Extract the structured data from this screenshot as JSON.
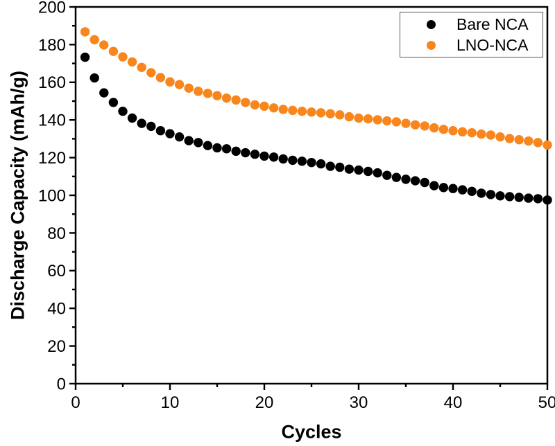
{
  "figure": {
    "background": "#ffffff",
    "axis_color": "#000000",
    "tick_label_color": "#000000"
  },
  "legend": {
    "position": "top-right",
    "entries": [
      {
        "label": "Bare NCA",
        "marker": "circle-icon",
        "color": "#000000"
      },
      {
        "label": "LNO-NCA",
        "marker": "circle-icon",
        "color": "#F8861C"
      }
    ]
  },
  "chart_data": {
    "type": "scatter",
    "title": "",
    "xlabel": "Cycles",
    "ylabel": "Discharge Capacity (mAh/g)",
    "xlim": [
      0,
      50
    ],
    "ylim": [
      0,
      200
    ],
    "x_major_ticks": [
      0,
      10,
      20,
      30,
      40,
      50
    ],
    "x_minor_step": 5,
    "y_major_ticks": [
      0,
      20,
      40,
      60,
      80,
      100,
      120,
      140,
      160,
      180,
      200
    ],
    "y_minor_step": 10,
    "grid": false,
    "legend_position": "top-right",
    "marker_radius_px": 6.7,
    "x": [
      1,
      2,
      3,
      4,
      5,
      6,
      7,
      8,
      9,
      10,
      11,
      12,
      13,
      14,
      15,
      16,
      17,
      18,
      19,
      20,
      21,
      22,
      23,
      24,
      25,
      26,
      27,
      28,
      29,
      30,
      31,
      32,
      33,
      34,
      35,
      36,
      37,
      38,
      39,
      40,
      41,
      42,
      43,
      44,
      45,
      46,
      47,
      48,
      49,
      50
    ],
    "series": [
      {
        "name": "Bare NCA",
        "color": "#000000",
        "values": [
          173.3,
          162.3,
          154.4,
          149.3,
          144.6,
          141.0,
          138.2,
          136.6,
          134.3,
          132.7,
          131.0,
          129.0,
          128.0,
          126.4,
          125.2,
          124.7,
          123.4,
          122.6,
          121.8,
          120.8,
          120.3,
          119.3,
          118.6,
          118.1,
          117.4,
          116.7,
          115.4,
          114.9,
          113.9,
          113.4,
          112.7,
          111.9,
          110.6,
          109.5,
          108.5,
          107.7,
          106.8,
          105.1,
          104.1,
          103.6,
          102.9,
          102.1,
          101.1,
          100.4,
          99.7,
          99.3,
          98.9,
          98.5,
          98.2,
          97.5
        ]
      },
      {
        "name": "LNO-NCA",
        "color": "#F8861C",
        "values": [
          186.8,
          182.6,
          179.8,
          176.4,
          173.5,
          170.8,
          167.9,
          165.1,
          162.5,
          160.2,
          158.8,
          156.9,
          155.2,
          154.1,
          152.9,
          151.6,
          150.6,
          149.3,
          148.0,
          147.3,
          146.4,
          145.6,
          145.1,
          144.6,
          144.2,
          143.8,
          143.3,
          142.7,
          141.7,
          141.0,
          140.6,
          140.1,
          139.5,
          139.0,
          138.2,
          137.4,
          136.8,
          135.8,
          135.0,
          134.3,
          133.7,
          133.2,
          132.5,
          132.0,
          131.0,
          130.1,
          129.5,
          128.8,
          128.0,
          126.7
        ]
      }
    ]
  }
}
